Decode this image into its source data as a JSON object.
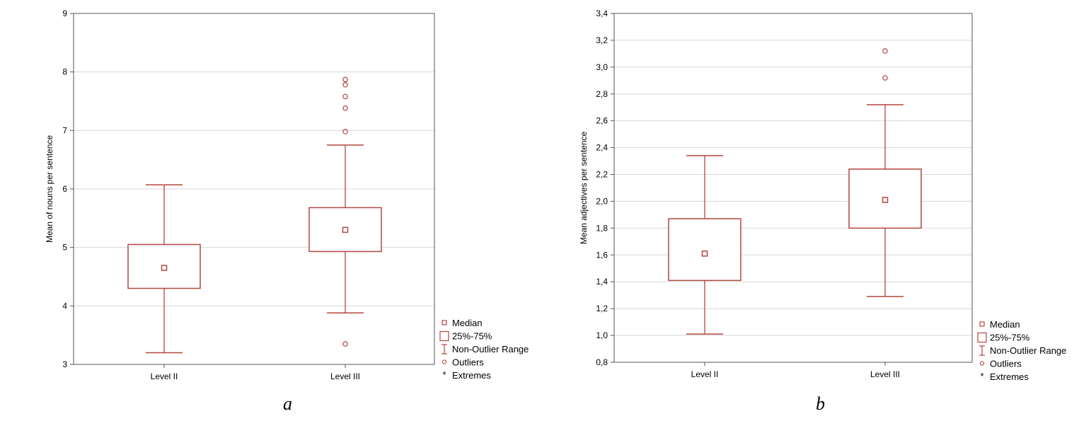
{
  "colors": {
    "box": "#b4463e",
    "grid": "#d8d8d8",
    "frame": "#555555"
  },
  "legend": {
    "items": [
      {
        "icon": "median-square-icon",
        "label": "Median"
      },
      {
        "icon": "box-icon",
        "label": "25%-75%"
      },
      {
        "icon": "whisker-icon",
        "label": "Non-Outlier Range"
      },
      {
        "icon": "outlier-circle-icon",
        "label": "Outliers"
      },
      {
        "icon": "extreme-star-icon",
        "label": "Extremes"
      }
    ]
  },
  "chart_data": [
    {
      "type": "box",
      "panel_label": "a",
      "title": "",
      "xlabel": "",
      "ylabel": "Mean of nouns per sentence",
      "ylim": [
        3,
        9
      ],
      "yticks": [
        "3",
        "4",
        "5",
        "6",
        "7",
        "8",
        "9"
      ],
      "grid": true,
      "legend_position": "bottom-right",
      "categories": [
        "Level II",
        "Level III"
      ],
      "boxes": [
        {
          "category": "Level II",
          "whisker_low": 3.2,
          "q1": 4.3,
          "median": 4.65,
          "q3": 5.05,
          "whisker_high": 6.07,
          "outliers": []
        },
        {
          "category": "Level III",
          "whisker_low": 3.88,
          "q1": 4.93,
          "median": 5.3,
          "q3": 5.68,
          "whisker_high": 6.75,
          "outliers": [
            3.35,
            6.98,
            7.38,
            7.58,
            7.78,
            7.87
          ]
        }
      ]
    },
    {
      "type": "box",
      "panel_label": "b",
      "title": "",
      "xlabel": "",
      "ylabel": "Mean adjectives per sentence",
      "ylim": [
        0.8,
        3.4
      ],
      "yticks": [
        "0,8",
        "1,0",
        "1,2",
        "1,4",
        "1,6",
        "1,8",
        "2,0",
        "2,2",
        "2,4",
        "2,6",
        "2,8",
        "3,0",
        "3,2",
        "3,4"
      ],
      "grid": true,
      "legend_position": "bottom-right",
      "categories": [
        "Level II",
        "Level III"
      ],
      "boxes": [
        {
          "category": "Level II",
          "whisker_low": 1.01,
          "q1": 1.41,
          "median": 1.61,
          "q3": 1.87,
          "whisker_high": 2.34,
          "outliers": []
        },
        {
          "category": "Level III",
          "whisker_low": 1.29,
          "q1": 1.8,
          "median": 2.01,
          "q3": 2.24,
          "whisker_high": 2.72,
          "outliers": [
            2.92,
            3.12
          ]
        }
      ]
    }
  ]
}
